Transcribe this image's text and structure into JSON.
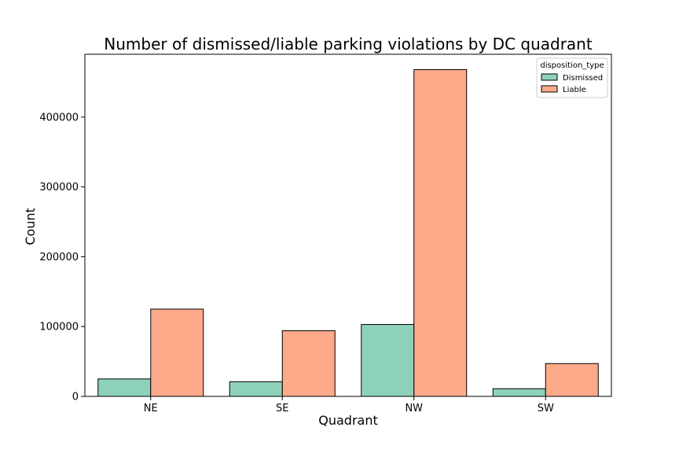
{
  "chart_data": {
    "type": "bar",
    "title": "Number of dismissed/liable parking violations by DC quadrant",
    "xlabel": "Quadrant",
    "ylabel": "Count",
    "categories": [
      "NE",
      "SE",
      "NW",
      "SW"
    ],
    "series": [
      {
        "name": "Dismissed",
        "color": "#8ed1ba",
        "values": [
          25000,
          21000,
          103000,
          11000
        ]
      },
      {
        "name": "Liable",
        "color": "#fcaa8a",
        "values": [
          125000,
          94000,
          468000,
          47000
        ]
      }
    ],
    "ylim": [
      0,
      490000
    ],
    "yticks": [
      0,
      100000,
      200000,
      300000,
      400000
    ],
    "ytick_labels": [
      "0",
      "100000",
      "200000",
      "300000",
      "400000"
    ],
    "grid": false,
    "legend": {
      "title": "disposition_type",
      "placement": "top-right"
    }
  }
}
